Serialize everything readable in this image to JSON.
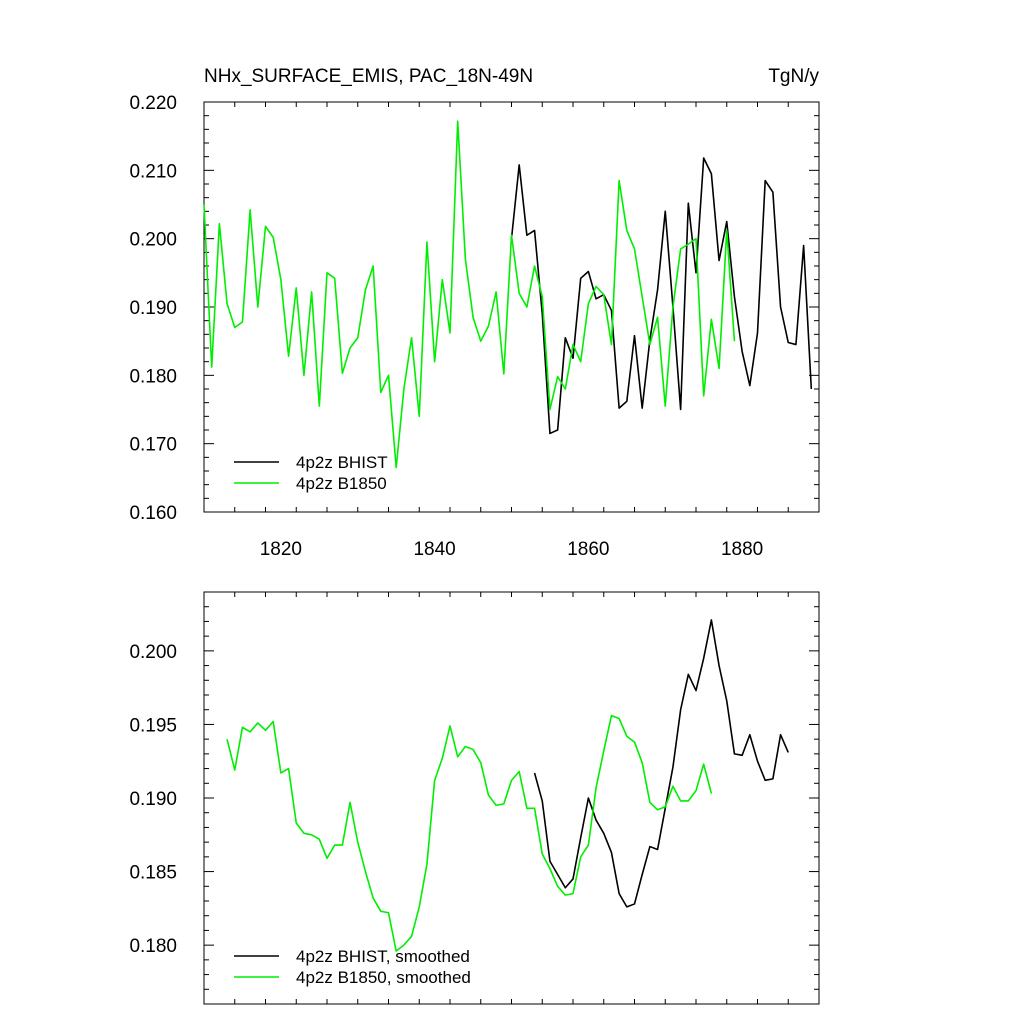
{
  "chart_data": [
    {
      "type": "line",
      "title": "NHx_SURFACE_EMIS, PAC_18N-49N",
      "units_label": "TgN/y",
      "xlabel": "",
      "ylabel": "",
      "xlim": [
        1810,
        1890
      ],
      "ylim": [
        0.16,
        0.22
      ],
      "x_ticks": [
        1820,
        1840,
        1860,
        1880
      ],
      "x_tick_labels": [
        "1820",
        "1840",
        "1860",
        "1880"
      ],
      "y_ticks": [
        0.16,
        0.17,
        0.18,
        0.19,
        0.2,
        0.21,
        0.22
      ],
      "y_tick_labels": [
        "0.160",
        "0.170",
        "0.180",
        "0.190",
        "0.200",
        "0.210",
        "0.220"
      ],
      "grid": false,
      "legend_position": "bottom-left",
      "series": [
        {
          "name": "4p2z BHIST",
          "color": "#000000",
          "x_start": 1850,
          "values": [
            0.2,
            0.2108,
            0.2005,
            0.2012,
            0.189,
            0.1715,
            0.172,
            0.1855,
            0.1825,
            0.1942,
            0.1952,
            0.1912,
            0.1918,
            0.1895,
            0.1752,
            0.1762,
            0.1858,
            0.1752,
            0.1852,
            0.1925,
            0.204,
            0.19,
            0.175,
            0.2052,
            0.195,
            0.2118,
            0.2095,
            0.1968,
            0.2025,
            0.1915,
            0.1835,
            0.1785,
            0.1862,
            0.2085,
            0.2068,
            0.19,
            0.1848,
            0.1845,
            0.199,
            0.178
          ]
        },
        {
          "name": "4p2z B1850",
          "color": "#00ee00",
          "x_start": 1810,
          "values": [
            0.205,
            0.1812,
            0.2022,
            0.1905,
            0.187,
            0.1878,
            0.2042,
            0.19,
            0.2018,
            0.2002,
            0.194,
            0.1828,
            0.1928,
            0.18,
            0.1922,
            0.1755,
            0.195,
            0.1942,
            0.1803,
            0.184,
            0.1855,
            0.1925,
            0.196,
            0.1775,
            0.18,
            0.1665,
            0.178,
            0.1855,
            0.174,
            0.1995,
            0.182,
            0.194,
            0.1862,
            0.2172,
            0.197,
            0.1885,
            0.185,
            0.1872,
            0.1922,
            0.1802,
            0.2005,
            0.192,
            0.19,
            0.196,
            0.1915,
            0.175,
            0.1798,
            0.178,
            0.1845,
            0.182,
            0.1905,
            0.193,
            0.1918,
            0.1845,
            0.2085,
            0.2012,
            0.1985,
            0.1915,
            0.1845,
            0.1885,
            0.1755,
            0.19,
            0.1985,
            0.1992,
            0.2,
            0.177,
            0.1882,
            0.181,
            0.2012,
            0.185
          ]
        }
      ]
    },
    {
      "type": "line",
      "title": "",
      "xlabel": "",
      "ylabel": "",
      "xlim": [
        1810,
        1890
      ],
      "ylim": [
        0.176,
        0.204
      ],
      "x_ticks": [
        1820,
        1840,
        1860,
        1880
      ],
      "y_ticks": [
        0.18,
        0.185,
        0.19,
        0.195,
        0.2
      ],
      "y_tick_labels": [
        "0.180",
        "0.185",
        "0.190",
        "0.195",
        "0.200"
      ],
      "grid": false,
      "legend_position": "bottom-left",
      "series": [
        {
          "name": "4p2z BHIST, smoothed",
          "color": "#000000",
          "x_start": 1853,
          "values": [
            0.1917,
            0.1898,
            0.1857,
            0.1848,
            0.1839,
            0.1845,
            0.1873,
            0.19,
            0.1885,
            0.1876,
            0.1863,
            0.1835,
            0.1826,
            0.1828,
            0.1848,
            0.1867,
            0.1865,
            0.1893,
            0.1921,
            0.196,
            0.1984,
            0.1973,
            0.1995,
            0.2021,
            0.199,
            0.1966,
            0.193,
            0.1929,
            0.1943,
            0.1925,
            0.1912,
            0.1913,
            0.1943,
            0.1931
          ]
        },
        {
          "name": "4p2z B1850, smoothed",
          "color": "#00ee00",
          "x_start": 1813,
          "values": [
            0.194,
            0.1919,
            0.1948,
            0.1945,
            0.1951,
            0.1946,
            0.1952,
            0.1917,
            0.192,
            0.1883,
            0.1876,
            0.1875,
            0.1872,
            0.1859,
            0.1868,
            0.1868,
            0.1897,
            0.187,
            0.185,
            0.1832,
            0.1823,
            0.1822,
            0.1796,
            0.18,
            0.1806,
            0.1826,
            0.1855,
            0.1912,
            0.1927,
            0.1949,
            0.1928,
            0.1935,
            0.1933,
            0.1924,
            0.1902,
            0.1895,
            0.1896,
            0.1912,
            0.1918,
            0.1893,
            0.1893,
            0.1862,
            0.1852,
            0.184,
            0.1834,
            0.1835,
            0.186,
            0.1868,
            0.1907,
            0.1932,
            0.1956,
            0.1954,
            0.1942,
            0.1938,
            0.1924,
            0.1897,
            0.1892,
            0.1894,
            0.1908,
            0.1898,
            0.1898,
            0.1905,
            0.1923,
            0.1903
          ]
        }
      ]
    }
  ]
}
